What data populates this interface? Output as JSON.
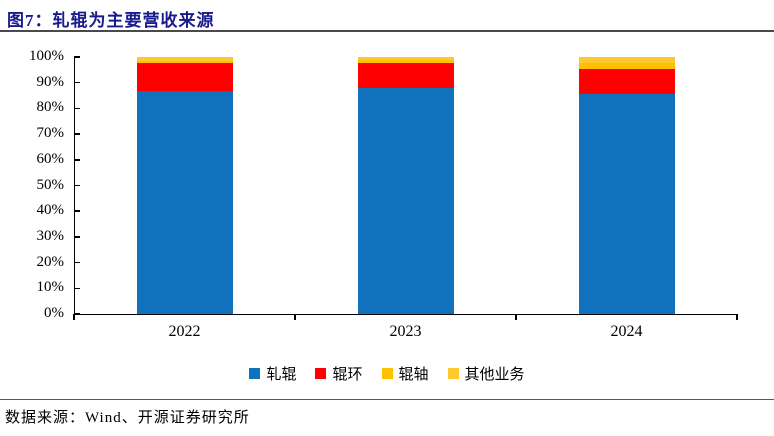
{
  "title": "图7：轧辊为主要营收来源",
  "footer": {
    "source_label": "数据来源：Wind、开源证券研究所"
  },
  "colors": {
    "title_text": "#1a1a8f",
    "title_rule": "#4a4a4a",
    "axis": "#000000",
    "blue": "#1072BD",
    "red": "#FE0000",
    "gold": "#FFC000",
    "light_gold": "#FFC92E"
  },
  "chart_data": {
    "type": "bar",
    "stacked": true,
    "title": "图7：轧辊为主要营收来源",
    "categories": [
      "2022",
      "2023",
      "2024"
    ],
    "series": [
      {
        "name": "轧辊",
        "color": "#1072BD",
        "values": [
          86.9,
          87.9,
          85.6
        ]
      },
      {
        "name": "辊环",
        "color": "#FE0000",
        "values": [
          10.6,
          9.9,
          9.9
        ]
      },
      {
        "name": "辊轴",
        "color": "#FFC000",
        "values": [
          1.0,
          0.9,
          2.0
        ]
      },
      {
        "name": "其他业务",
        "color": "#FFC92E",
        "values": [
          1.5,
          1.3,
          2.5
        ]
      }
    ],
    "xlabel": "",
    "ylabel": "",
    "ylim": [
      0,
      100
    ],
    "ytick_step": 10,
    "ytick_labels": [
      "0%",
      "10%",
      "20%",
      "30%",
      "40%",
      "50%",
      "60%",
      "70%",
      "80%",
      "90%",
      "100%"
    ],
    "grid": false,
    "legend_position": "bottom"
  }
}
